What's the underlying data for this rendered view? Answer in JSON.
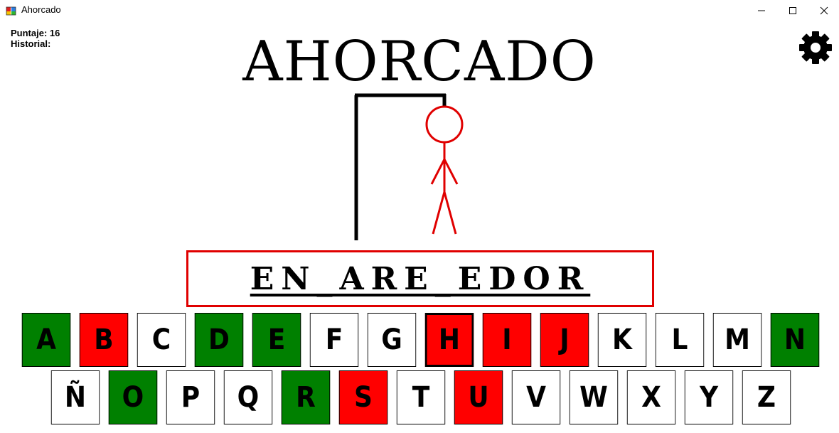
{
  "window": {
    "title": "Ahorcado"
  },
  "score": {
    "points_label": "Puntaje: 16",
    "history_label": "Historial:"
  },
  "title": "AHORCADO",
  "word": {
    "display": "EN_ARE_EDOR"
  },
  "colors": {
    "correct": "#008000",
    "wrong": "#ff0000",
    "unused": "#ffffff",
    "figure": "#e00000"
  },
  "keyboard": {
    "row1": [
      {
        "letter": "A",
        "state": "correct"
      },
      {
        "letter": "B",
        "state": "wrong"
      },
      {
        "letter": "C",
        "state": "unused"
      },
      {
        "letter": "D",
        "state": "correct"
      },
      {
        "letter": "E",
        "state": "correct"
      },
      {
        "letter": "F",
        "state": "unused"
      },
      {
        "letter": "G",
        "state": "unused"
      },
      {
        "letter": "H",
        "state": "wrong"
      },
      {
        "letter": "I",
        "state": "wrong"
      },
      {
        "letter": "J",
        "state": "wrong"
      },
      {
        "letter": "K",
        "state": "unused"
      },
      {
        "letter": "L",
        "state": "unused"
      },
      {
        "letter": "M",
        "state": "unused"
      },
      {
        "letter": "N",
        "state": "correct"
      }
    ],
    "row2": [
      {
        "letter": "Ñ",
        "state": "unused"
      },
      {
        "letter": "O",
        "state": "correct"
      },
      {
        "letter": "P",
        "state": "unused"
      },
      {
        "letter": "Q",
        "state": "unused"
      },
      {
        "letter": "R",
        "state": "correct"
      },
      {
        "letter": "S",
        "state": "wrong"
      },
      {
        "letter": "T",
        "state": "unused"
      },
      {
        "letter": "U",
        "state": "wrong"
      },
      {
        "letter": "V",
        "state": "unused"
      },
      {
        "letter": "W",
        "state": "unused"
      },
      {
        "letter": "X",
        "state": "unused"
      },
      {
        "letter": "Y",
        "state": "unused"
      },
      {
        "letter": "Z",
        "state": "unused"
      }
    ]
  }
}
